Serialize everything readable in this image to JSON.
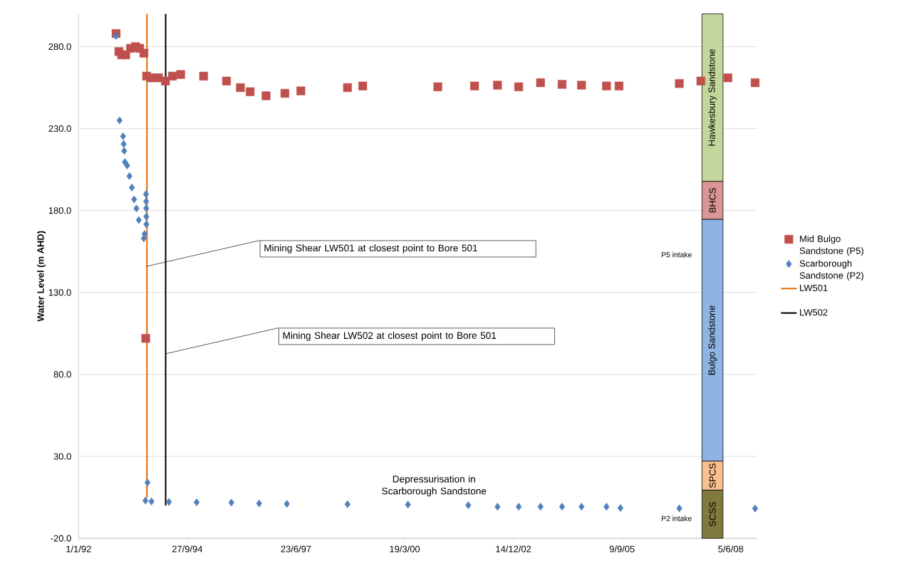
{
  "chart_data": {
    "type": "scatter",
    "ylabel": "Water Level (m AHD)",
    "xlim": [
      "1992-01-01",
      "2009-02-01"
    ],
    "ylim": [
      -20,
      300
    ],
    "xticks": [
      {
        "value": "1992-01-01",
        "label": "1/1/92"
      },
      {
        "value": "1994-09-27",
        "label": "27/9/94"
      },
      {
        "value": "1997-06-23",
        "label": "23/6/97"
      },
      {
        "value": "2000-03-19",
        "label": "19/3/00"
      },
      {
        "value": "2002-12-14",
        "label": "14/12/02"
      },
      {
        "value": "2005-09-09",
        "label": "9/9/05"
      },
      {
        "value": "2008-06-05",
        "label": "5/6/08"
      }
    ],
    "yticks": [
      {
        "value": -20,
        "label": "-20.0"
      },
      {
        "value": 30,
        "label": "30.0"
      },
      {
        "value": 80,
        "label": "80.0"
      },
      {
        "value": 130,
        "label": "130.0"
      },
      {
        "value": 180,
        "label": "180.0"
      },
      {
        "value": 230,
        "label": "230.0"
      },
      {
        "value": 280,
        "label": "280.0"
      }
    ],
    "grid": "y",
    "legend": "right",
    "series": [
      {
        "name": "Mid Bulgo Sandstone (P5)",
        "color": "#c0504d",
        "marker": "square",
        "x": [
          "1992-12-11",
          "1993-01-06",
          "1993-01-31",
          "1993-03-10",
          "1993-04-24",
          "1993-06-08",
          "1993-07-16",
          "1993-08-24",
          "1993-09-10",
          "1993-09-18",
          "1993-11-02",
          "1994-01-05",
          "1994-03-10",
          "1994-05-13",
          "1994-07-28",
          "1995-02-24",
          "1995-09-23",
          "1996-01-29",
          "1996-04-27",
          "1996-09-21",
          "1997-03-13",
          "1997-08-07",
          "1998-10-10",
          "1999-02-27",
          "2001-01-18",
          "2001-12-22",
          "2002-07-21",
          "2003-02-01",
          "2003-08-21",
          "2004-03-06",
          "2004-09-01",
          "2005-04-19",
          "2005-08-12",
          "2007-02-18",
          "2007-09-04",
          "2008-05-10",
          "2009-01-15"
        ],
        "values": [
          288,
          277,
          275,
          275,
          279,
          280,
          279,
          276,
          102,
          262,
          261,
          261,
          259,
          262,
          263,
          262,
          259,
          255,
          252.5,
          250,
          251.5,
          253,
          255,
          256,
          255.5,
          256,
          256.5,
          255.5,
          258,
          257,
          256.5,
          256,
          256,
          257.5,
          259,
          261,
          258
        ]
      },
      {
        "name": "Scarborough Sandstone (P2)",
        "color": "#4f81bd",
        "marker": "diamond",
        "x": [
          "1992-12-11",
          "1993-01-12",
          "1993-02-13",
          "1993-02-19",
          "1993-02-24",
          "1993-03-02",
          "1993-03-23",
          "1993-04-13",
          "1993-05-05",
          "1993-05-26",
          "1993-06-16",
          "1993-07-08",
          "1993-08-23",
          "1993-08-30",
          "1993-09-07",
          "1993-09-12",
          "1993-09-13",
          "1993-09-14",
          "1993-09-15",
          "1993-09-16",
          "1993-09-26",
          "1993-11-02",
          "1994-04-11",
          "1994-12-22",
          "1995-11-07",
          "1996-07-19",
          "1997-03-31",
          "1998-10-10",
          "2000-04-18",
          "2001-10-25",
          "2002-07-21",
          "2003-02-01",
          "2003-08-21",
          "2004-03-06",
          "2004-09-01",
          "2005-04-19",
          "2005-08-25",
          "2007-02-18",
          "2009-01-15"
        ],
        "values": [
          286.5,
          235,
          225.3,
          220.6,
          216.4,
          209.6,
          207.5,
          201,
          194,
          186.8,
          181.3,
          174.2,
          163,
          165.7,
          3,
          190,
          185.6,
          181.4,
          176.3,
          171.6,
          14,
          2.5,
          2.2,
          2,
          1.8,
          1.3,
          1,
          0.8,
          0.6,
          0.2,
          -0.7,
          -0.7,
          -0.7,
          -0.7,
          -0.7,
          -0.7,
          -1.5,
          -1.7,
          -1.8
        ]
      },
      {
        "name": "LW501",
        "color": "#e46c0a",
        "type": "line",
        "marker": "none",
        "x": [
          "1993-09-21",
          "1993-09-21"
        ],
        "values": [
          300,
          4.8
        ]
      },
      {
        "name": "LW502",
        "color": "#000000",
        "type": "line",
        "marker": "none",
        "x": [
          "1994-03-12",
          "1994-03-12"
        ],
        "values": [
          300,
          0
        ]
      },
      {
        "name": "Hawkesbury  Sandstone",
        "color": "#c3d69b",
        "type": "bar",
        "x": [
          "2007-12-20"
        ],
        "base": [
          197.8
        ],
        "values": [
          102.2
        ]
      },
      {
        "name": "BHCS",
        "color": "#d99694",
        "type": "bar",
        "x": [
          "2007-12-20"
        ],
        "base": [
          174.6
        ],
        "values": [
          23.2
        ]
      },
      {
        "name": "Bulgo Sandstone",
        "color": "#8eb4e3",
        "type": "bar",
        "x": [
          "2007-12-20"
        ],
        "base": [
          27.1
        ],
        "values": [
          147.5
        ]
      },
      {
        "name": "SPCS",
        "color": "#fac090",
        "type": "bar",
        "x": [
          "2007-12-20"
        ],
        "base": [
          9.4
        ],
        "values": [
          17.7
        ]
      },
      {
        "name": "SCSS",
        "color": "#807a40",
        "type": "bar",
        "x": [
          "2007-12-20"
        ],
        "base": [
          -20
        ],
        "values": [
          29.4
        ]
      }
    ],
    "annotations": [
      {
        "text": "Mining Shear LW501 at closest point to  Bore 501",
        "x": "1993-09-21",
        "y": 146
      },
      {
        "text": "Mining Shear LW502 at closest point to  Bore 501",
        "x": "1994-03-12",
        "y": 92.6
      },
      "Depressurisation  in Scarborough Sandstone",
      "P5 intake",
      "P2 intake"
    ]
  }
}
